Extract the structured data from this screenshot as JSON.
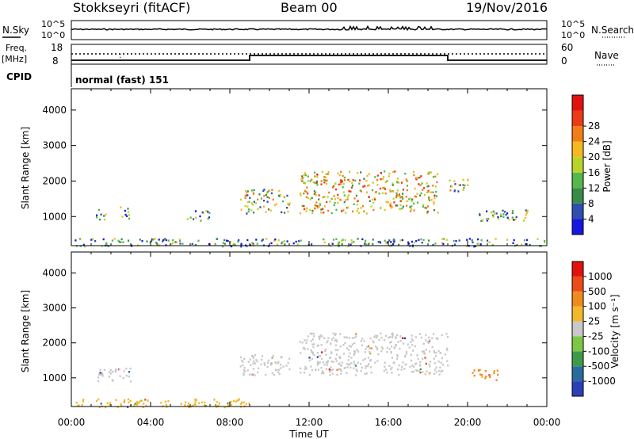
{
  "header": {
    "station": "Stokkseyri (fitACF)",
    "beam": "Beam 00",
    "date": "19/Nov/2016"
  },
  "summary": {
    "noise_left_label": "N.Sky",
    "noise_left_ticks": [
      "10^5",
      "10^0"
    ],
    "noise_right_label": "N.Search",
    "noise_right_ticks": [
      "10^5",
      "10^0"
    ],
    "freq_label": [
      "Freq.",
      "[MHz]"
    ],
    "freq_ticks": [
      "18",
      "8"
    ],
    "nave_label": "Nave",
    "nave_ticks": [
      "60",
      "0"
    ],
    "cpid_label": "CPID",
    "cpid_value": "normal (fast) 151"
  },
  "chart_data": [
    {
      "type": "heatmap",
      "name": "power",
      "ylabel": "Slant Range [km]",
      "xlabel": "",
      "yticks": [
        "1000",
        "2000",
        "3000",
        "4000"
      ],
      "ylim": [
        180,
        4600
      ],
      "xlim_hours": [
        0,
        24
      ],
      "colorbar": {
        "label": "Power [dB]",
        "ticks": [
          "4",
          "8",
          "12",
          "16",
          "20",
          "24",
          "28"
        ],
        "colors": [
          "#1616e0",
          "#2e4fb0",
          "#3a8a4a",
          "#54b84a",
          "#b8d42a",
          "#f5b821",
          "#f27d16",
          "#ec3a14",
          "#e31010"
        ]
      },
      "regions": [
        {
          "t0": 1.2,
          "t1": 1.8,
          "r0": 900,
          "r1": 1300,
          "level": 0.35
        },
        {
          "t0": 2.4,
          "t1": 3.0,
          "r0": 900,
          "r1": 1300,
          "level": 0.3
        },
        {
          "t0": 5.8,
          "t1": 7.2,
          "r0": 900,
          "r1": 1200,
          "level": 0.25
        },
        {
          "t0": 8.5,
          "t1": 11.0,
          "r0": 1100,
          "r1": 1800,
          "level": 0.45
        },
        {
          "t0": 11.5,
          "t1": 18.5,
          "r0": 1100,
          "r1": 2300,
          "level": 0.6
        },
        {
          "t0": 19.0,
          "t1": 20.0,
          "r0": 1700,
          "r1": 2100,
          "level": 0.4
        },
        {
          "t0": 20.5,
          "t1": 23.5,
          "r0": 900,
          "r1": 1200,
          "level": 0.3
        },
        {
          "t0": 0.0,
          "t1": 24.0,
          "r0": 180,
          "r1": 400,
          "level": 0.3
        }
      ]
    },
    {
      "type": "heatmap",
      "name": "velocity",
      "ylabel": "Slant Range [km]",
      "xlabel": "Time UT",
      "yticks": [
        "1000",
        "2000",
        "3000",
        "4000"
      ],
      "ylim": [
        180,
        4600
      ],
      "xlim_hours": [
        0,
        24
      ],
      "xticks": [
        "00:00",
        "04:00",
        "08:00",
        "12:00",
        "16:00",
        "20:00",
        "00:00"
      ],
      "colorbar": {
        "label": "Velocity [m s⁻¹]",
        "ticks": [
          "1000",
          "500",
          "100",
          "25",
          "-25",
          "-100",
          "-500",
          "-1000"
        ],
        "colors": [
          "#2a3fb8",
          "#2a6b9e",
          "#3e9a4a",
          "#7cc842",
          "#c8c8c8",
          "#f2b82a",
          "#f08a1c",
          "#ec4a18",
          "#e31010"
        ]
      },
      "regions": [
        {
          "t0": 11.5,
          "t1": 19.0,
          "r0": 1100,
          "r1": 2300,
          "color": "#c8c8c8"
        },
        {
          "t0": 8.5,
          "t1": 11.0,
          "r0": 1100,
          "r1": 1700,
          "color": "#c8c8c8"
        },
        {
          "t0": 1.2,
          "t1": 3.0,
          "r0": 900,
          "r1": 1300,
          "color": "#c8c8c8"
        },
        {
          "t0": 20.2,
          "t1": 21.5,
          "r0": 950,
          "r1": 1300,
          "color": "#f08a1c"
        },
        {
          "t0": 0.0,
          "t1": 9.0,
          "r0": 180,
          "r1": 420,
          "color": "#f2b82a"
        }
      ]
    }
  ]
}
